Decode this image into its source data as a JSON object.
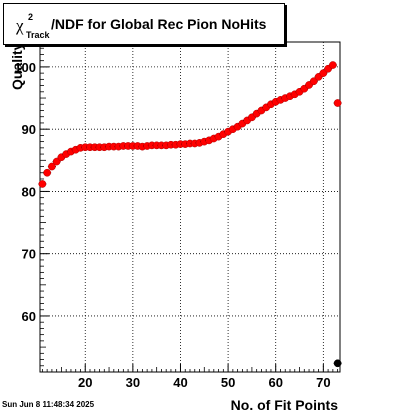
{
  "title": {
    "symbol": "χ",
    "superscript": "2",
    "subscript": "Track",
    "rest": "/NDF for Global Rec Pion NoHits"
  },
  "timestamp": "Sun Jun  8 11:48:34 2025",
  "chart_data": {
    "type": "scatter",
    "xlabel": "No. of Fit Points",
    "ylabel": "Quality",
    "xlim": [
      10.5,
      73.5
    ],
    "ylim": [
      51,
      104
    ],
    "xticks": [
      20,
      30,
      40,
      50,
      60,
      70
    ],
    "yticks": [
      60,
      70,
      80,
      90,
      100
    ],
    "grid": true,
    "colors": {
      "series": "#ff0000",
      "outline": "#000000"
    },
    "series": [
      {
        "x": [
          11,
          12,
          13,
          14,
          15,
          16,
          17,
          18,
          19,
          20,
          21,
          22,
          23,
          24,
          25,
          26,
          27,
          28,
          29,
          30,
          31,
          32,
          33,
          34,
          35,
          36,
          37,
          38,
          39,
          40,
          41,
          42,
          43,
          44,
          45,
          46,
          47,
          48,
          49,
          50,
          51,
          52,
          53,
          54,
          55,
          56,
          57,
          58,
          59,
          60,
          61,
          62,
          63,
          64,
          65,
          66,
          67,
          68,
          69,
          70,
          71,
          72,
          73,
          73
        ],
        "y": [
          81.2,
          83.0,
          84.0,
          84.8,
          85.5,
          86.0,
          86.4,
          86.7,
          87.0,
          87.1,
          87.1,
          87.1,
          87.1,
          87.1,
          87.2,
          87.2,
          87.2,
          87.3,
          87.3,
          87.3,
          87.3,
          87.2,
          87.3,
          87.4,
          87.4,
          87.4,
          87.4,
          87.5,
          87.5,
          87.6,
          87.6,
          87.7,
          87.7,
          87.8,
          88.0,
          88.2,
          88.5,
          88.8,
          89.2,
          89.6,
          90.0,
          90.4,
          90.9,
          91.4,
          91.9,
          92.5,
          93.0,
          93.5,
          94.0,
          94.4,
          94.7,
          95.0,
          95.3,
          95.6,
          96.0,
          96.5,
          97.1,
          97.7,
          98.4,
          99.0,
          99.7,
          100.3,
          94.2,
          52.4
        ],
        "colors": [
          "#ff0000",
          "#ff0000",
          "#ff0000",
          "#ff0000",
          "#ff0000",
          "#ff0000",
          "#ff0000",
          "#ff0000",
          "#ff0000",
          "#ff0000",
          "#ff0000",
          "#ff0000",
          "#ff0000",
          "#ff0000",
          "#ff0000",
          "#ff0000",
          "#ff0000",
          "#ff0000",
          "#ff0000",
          "#ff0000",
          "#ff0000",
          "#ff0000",
          "#ff0000",
          "#ff0000",
          "#ff0000",
          "#ff0000",
          "#ff0000",
          "#ff0000",
          "#ff0000",
          "#ff0000",
          "#ff0000",
          "#ff0000",
          "#ff0000",
          "#ff0000",
          "#ff0000",
          "#ff0000",
          "#ff0000",
          "#ff0000",
          "#ff0000",
          "#ff0000",
          "#ff0000",
          "#ff0000",
          "#ff0000",
          "#ff0000",
          "#ff0000",
          "#ff0000",
          "#ff0000",
          "#ff0000",
          "#ff0000",
          "#ff0000",
          "#ff0000",
          "#ff0000",
          "#ff0000",
          "#ff0000",
          "#ff0000",
          "#ff0000",
          "#ff0000",
          "#ff0000",
          "#ff0000",
          "#ff0000",
          "#ff0000",
          "#ff0000",
          "#ff0000",
          "#000000"
        ]
      }
    ]
  }
}
